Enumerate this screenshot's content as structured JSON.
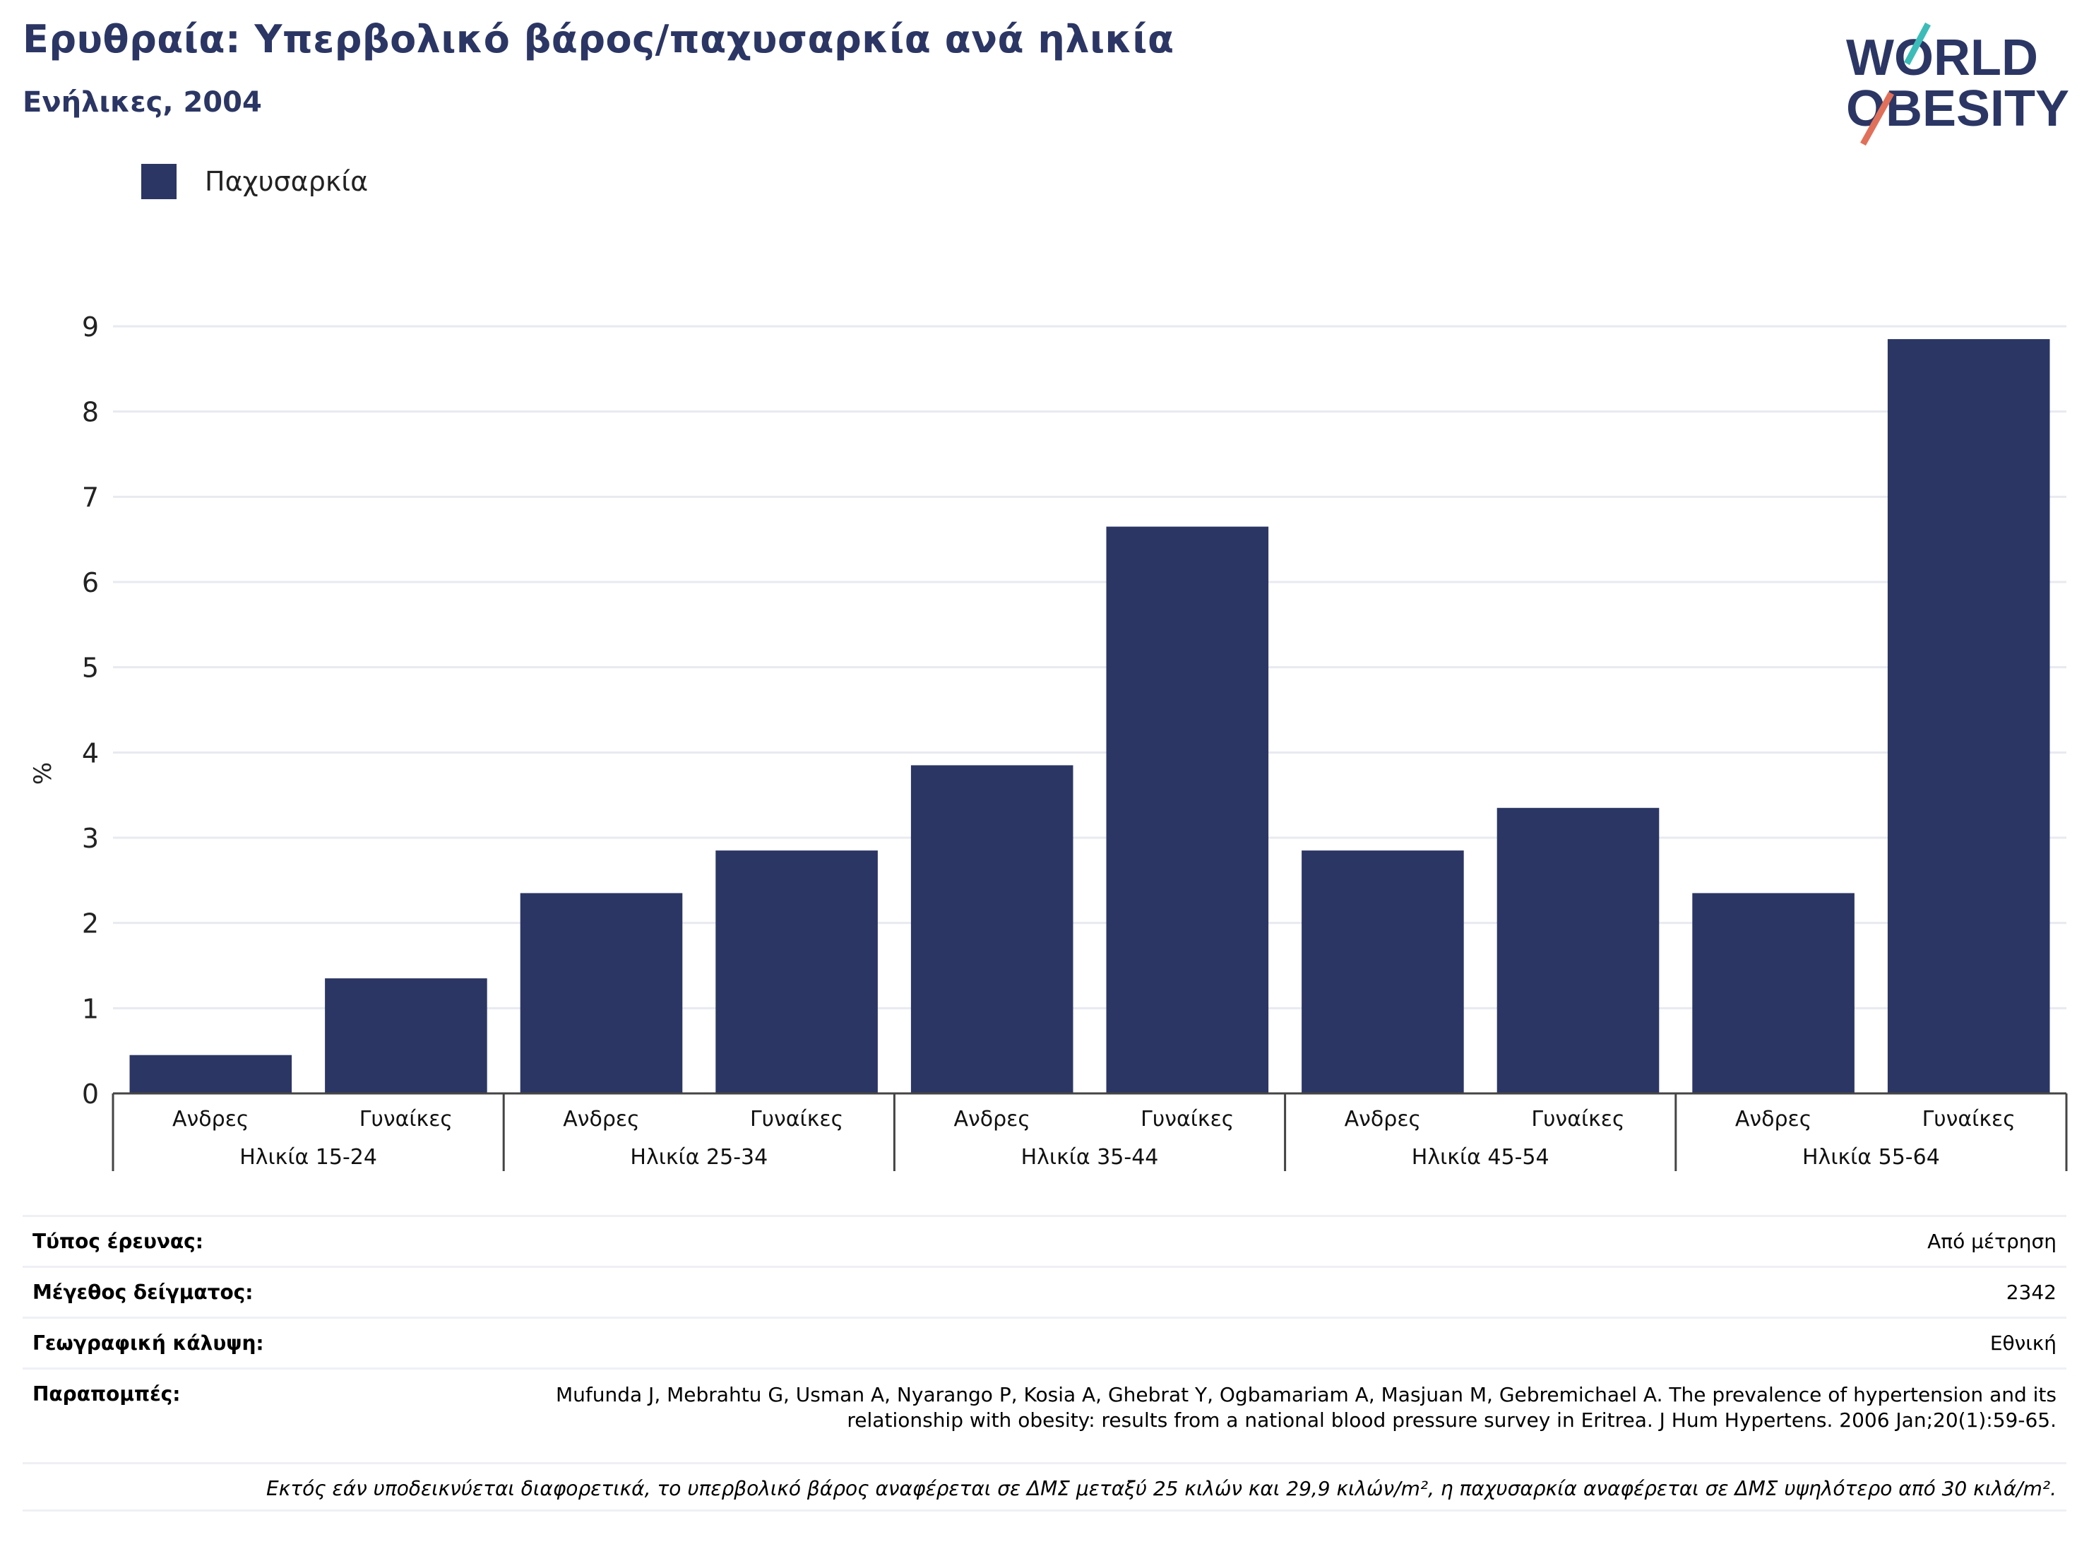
{
  "header": {
    "title": "Ερυθραία: Υπερβολικό βάρος/παχυσαρκία ανά ηλικία",
    "subtitle": "Ενήλικες, 2004"
  },
  "logo": {
    "line1": "WORLD",
    "line2": "OBESITY"
  },
  "colors": {
    "bar": "#2b3664",
    "accent_teal": "#3cbcb8",
    "accent_coral": "#e0705a",
    "grid": "#e8eaf0"
  },
  "chart_data": {
    "type": "bar",
    "title": "",
    "ylabel": "%",
    "ylim": [
      0,
      9
    ],
    "yticks": [
      0,
      1,
      2,
      3,
      4,
      5,
      6,
      7,
      8,
      9
    ],
    "grid": true,
    "legend_position": "top-left",
    "groups": [
      "Ηλικία 15-24",
      "Ηλικία 25-34",
      "Ηλικία 35-44",
      "Ηλικία 45-54",
      "Ηλικία 55-64"
    ],
    "categories": [
      "Ανδρες",
      "Γυναίκες",
      "Ανδρες",
      "Γυναίκες",
      "Ανδρες",
      "Γυναίκες",
      "Ανδρες",
      "Γυναίκες",
      "Ανδρες",
      "Γυναίκες"
    ],
    "series": [
      {
        "name": "Παχυσαρκία",
        "values": [
          0.45,
          1.35,
          2.35,
          2.85,
          3.85,
          6.65,
          2.85,
          3.35,
          2.35,
          8.85
        ]
      }
    ]
  },
  "info": {
    "rows": [
      {
        "key": "Τύπος έρευνας:",
        "value": "Από μέτρηση"
      },
      {
        "key": "Μέγεθος δείγματος:",
        "value": "2342"
      },
      {
        "key": "Γεωγραφική κάλυψη:",
        "value": "Εθνική"
      }
    ],
    "references_label": "Παραπομπές:",
    "references_text": "Mufunda J, Mebrahtu G, Usman A, Nyarango P, Kosia A, Ghebrat Y, Ogbamariam A, Masjuan M, Gebremichael A. The prevalence of hypertension and its relationship with obesity: results from a national blood pressure survey in Eritrea. J Hum Hypertens. 2006 Jan;20(1):59-65.",
    "note": "Εκτός εάν υποδεικνύεται διαφορετικά, το υπερβολικό βάρος αναφέρεται σε ΔΜΣ μεταξύ 25 κιλών και 29,9 κιλών/m², η παχυσαρκία αναφέρεται σε ΔΜΣ υψηλότερο από 30 κιλά/m²."
  }
}
